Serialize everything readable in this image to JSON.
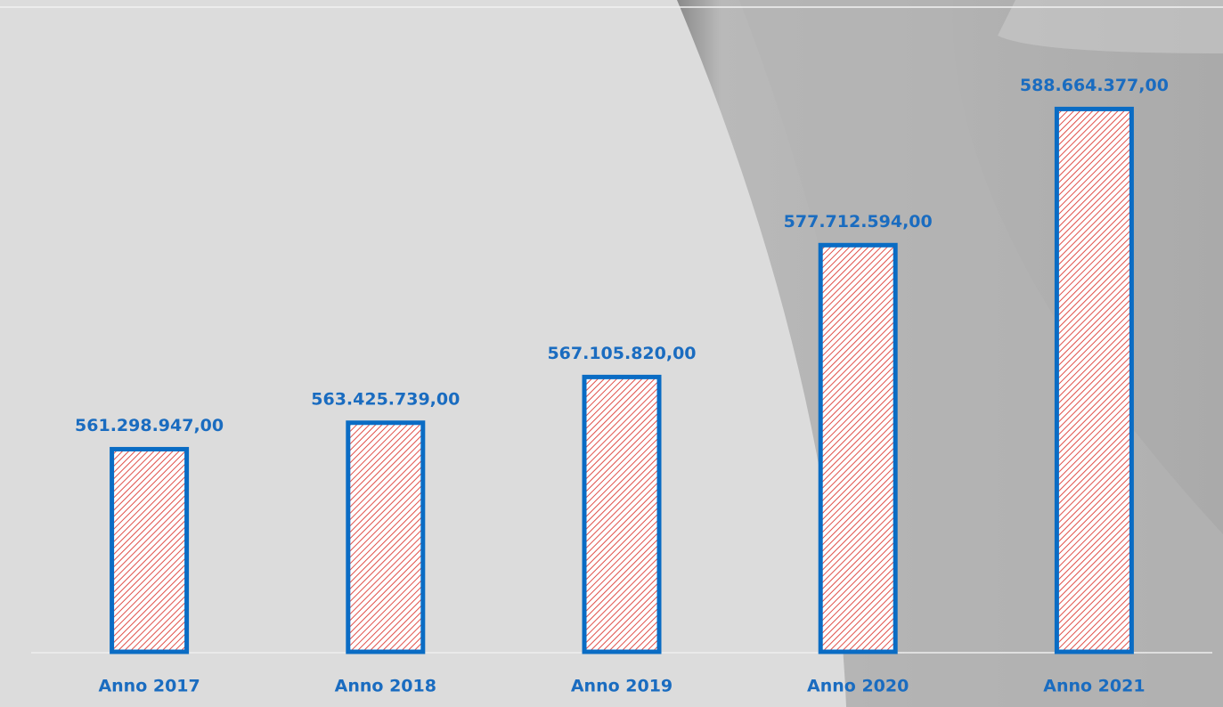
{
  "chart_data": {
    "type": "bar",
    "categories": [
      "Anno 2017",
      "Anno 2018",
      "Anno 2019",
      "Anno 2020",
      "Anno 2021"
    ],
    "values": [
      561298947,
      563425739,
      567105820,
      577712594,
      588664377
    ],
    "value_labels": [
      "561.298.947,00",
      "563.425.739,00",
      "567.105.820,00",
      "577.712.594,00",
      "588.664.377,00"
    ],
    "color": "#0a6cc4",
    "ylim": [
      545000000,
      596000000
    ]
  }
}
